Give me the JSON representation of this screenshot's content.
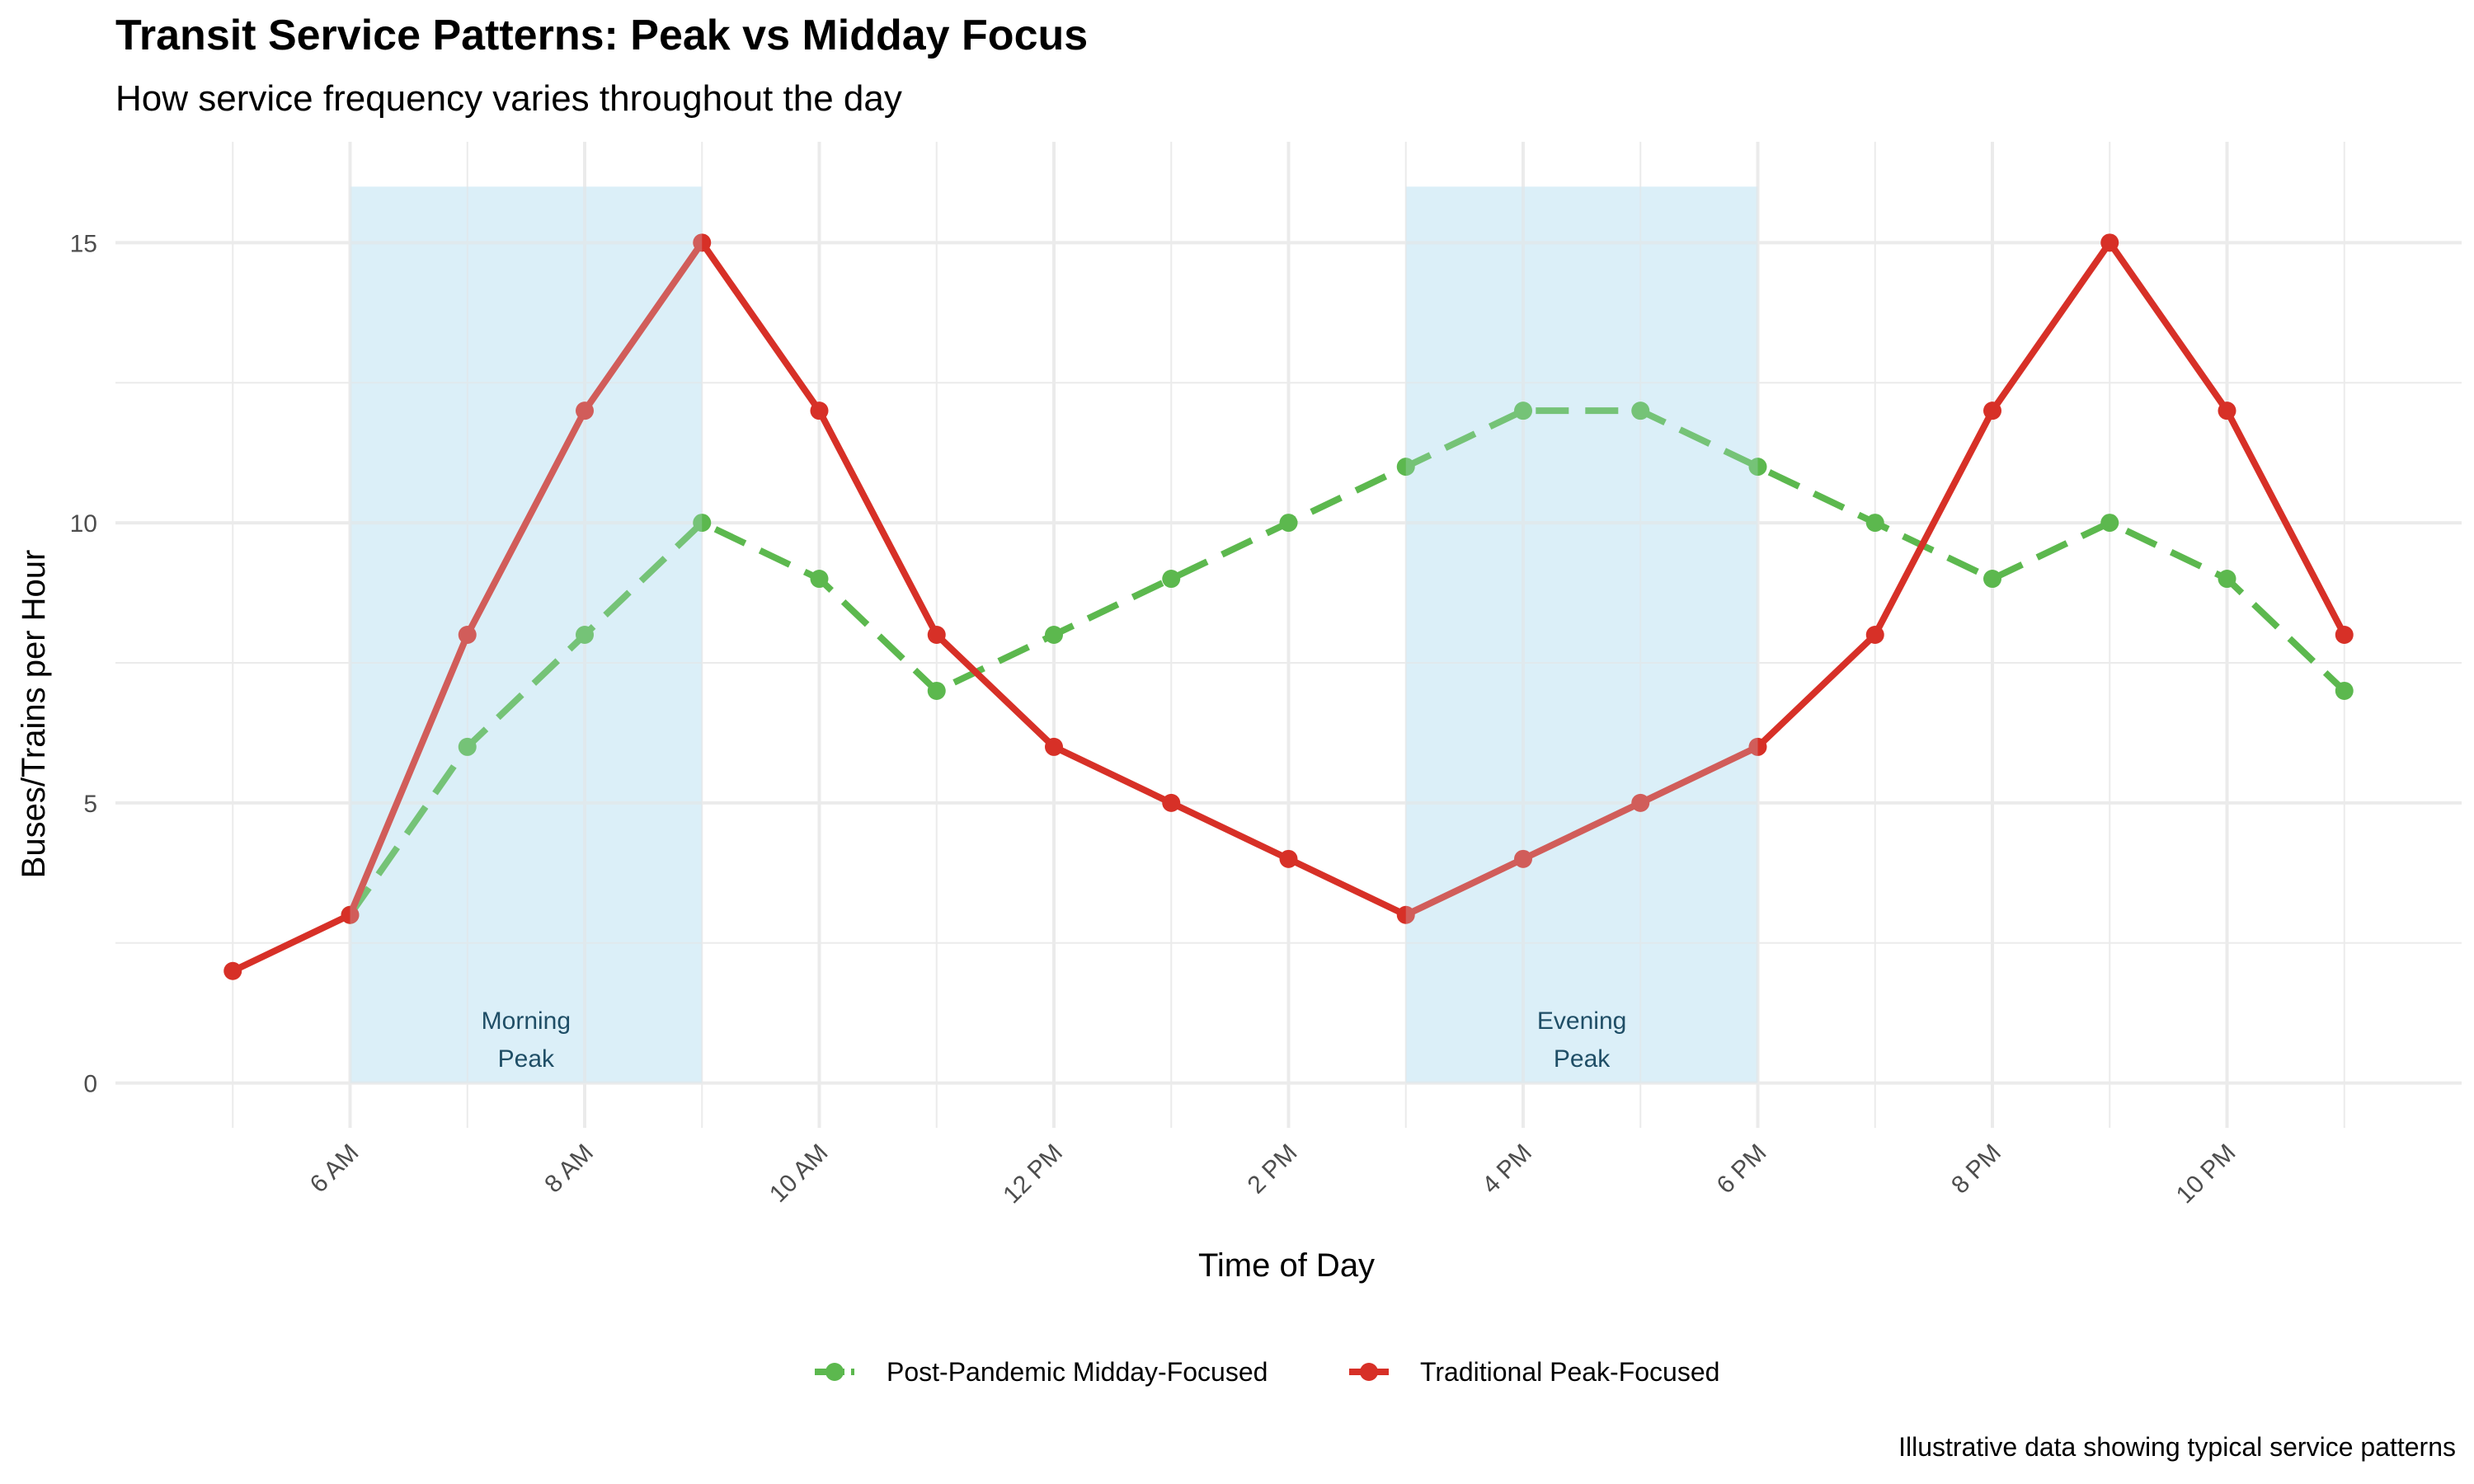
{
  "chart_data": {
    "type": "line",
    "title": "Transit Service Patterns: Peak vs Midday Focus",
    "subtitle": "How service frequency varies throughout the day",
    "xlabel": "Time of Day",
    "ylabel": "Buses/Trains per Hour",
    "caption": "Illustrative data showing typical service patterns",
    "x": [
      5,
      6,
      7,
      8,
      9,
      10,
      11,
      12,
      13,
      14,
      15,
      16,
      17,
      18,
      19,
      20,
      21,
      22,
      23
    ],
    "xlim": [
      4,
      24
    ],
    "ylim": [
      0,
      16
    ],
    "x_ticks": [
      {
        "value": 6,
        "label": "6 AM"
      },
      {
        "value": 8,
        "label": "8 AM"
      },
      {
        "value": 10,
        "label": "10 AM"
      },
      {
        "value": 12,
        "label": "12 PM"
      },
      {
        "value": 14,
        "label": "2 PM"
      },
      {
        "value": 16,
        "label": "4 PM"
      },
      {
        "value": 18,
        "label": "6 PM"
      },
      {
        "value": 20,
        "label": "8 PM"
      },
      {
        "value": 22,
        "label": "10 PM"
      }
    ],
    "y_ticks": [
      {
        "value": 0,
        "label": "0"
      },
      {
        "value": 5,
        "label": "5"
      },
      {
        "value": 10,
        "label": "10"
      },
      {
        "value": 15,
        "label": "15"
      }
    ],
    "bands": [
      {
        "from": 6,
        "to": 9,
        "ymax": 16,
        "label_lines": [
          "Morning",
          "Peak"
        ],
        "color": "#e4f3fa"
      },
      {
        "from": 15,
        "to": 18,
        "ymax": 16,
        "label_lines": [
          "Evening",
          "Peak"
        ],
        "color": "#e4f3fa"
      }
    ],
    "series": [
      {
        "name": "Post-Pandemic Midday-Focused",
        "color": "#5cb84e",
        "dashed": true,
        "points": [
          [
            6,
            3
          ],
          [
            7,
            6
          ],
          [
            8,
            8
          ],
          [
            9,
            10
          ],
          [
            10,
            9
          ],
          [
            11,
            7
          ],
          [
            12,
            8
          ],
          [
            13,
            9
          ],
          [
            14,
            10
          ],
          [
            15,
            11
          ],
          [
            16,
            12
          ],
          [
            17,
            12
          ],
          [
            18,
            11
          ],
          [
            19,
            10
          ],
          [
            20,
            9
          ],
          [
            21,
            10
          ],
          [
            22,
            9
          ],
          [
            23,
            7
          ]
        ]
      },
      {
        "name": "Traditional Peak-Focused",
        "color": "#d73027",
        "dashed": false,
        "points": [
          [
            5,
            2
          ],
          [
            6,
            3
          ],
          [
            7,
            8
          ],
          [
            8,
            12
          ],
          [
            9,
            15
          ],
          [
            10,
            12
          ],
          [
            11,
            8
          ],
          [
            12,
            6
          ],
          [
            13,
            5
          ],
          [
            14,
            4
          ],
          [
            15,
            3
          ],
          [
            16,
            4
          ],
          [
            17,
            5
          ],
          [
            18,
            6
          ],
          [
            19,
            8
          ],
          [
            20,
            12
          ],
          [
            21,
            15
          ],
          [
            22,
            12
          ],
          [
            23,
            8
          ]
        ]
      }
    ],
    "grid": true,
    "legend_position": "bottom"
  }
}
